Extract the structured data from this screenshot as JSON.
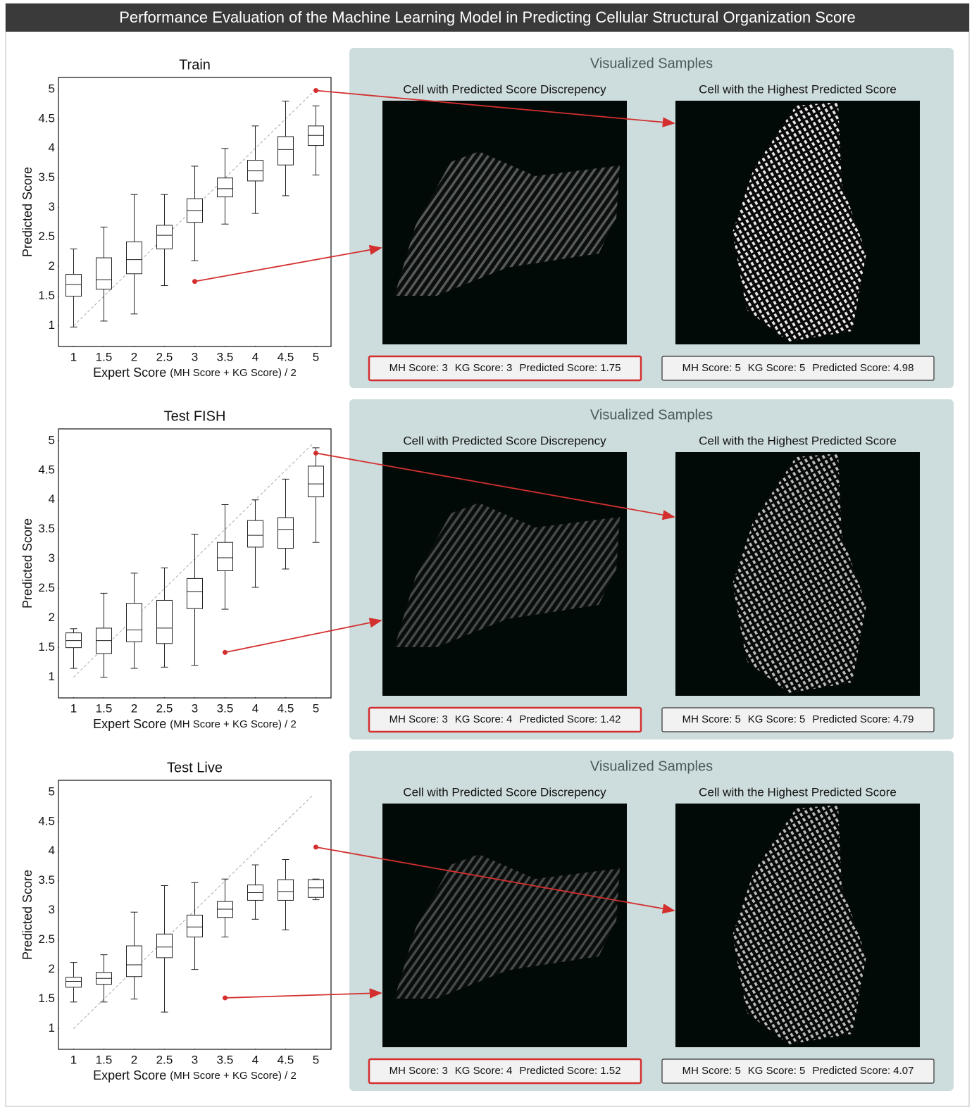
{
  "title": "Performance Evaluation of the Machine Learning Model in Predicting Cellular Structural Organization Score",
  "panel_title": "Visualized Samples",
  "sample_titles": [
    "Cell with Predicted Score Discrepency",
    "Cell with the Highest Predicted Score"
  ],
  "score_labels": [
    "MH Score:",
    "KG Score:",
    "Predicted Score:"
  ],
  "chart_data": [
    {
      "type": "box",
      "title": "Train",
      "xlabel": "Expert Score",
      "xlabel_note": "(MH Score + KG Score) / 2",
      "ylabel": "Predicted Score",
      "categories": [
        1,
        1.5,
        2,
        2.5,
        3,
        3.5,
        4,
        4.5,
        5
      ],
      "boxes": [
        [
          0.98,
          1.5,
          1.7,
          1.87,
          2.3
        ],
        [
          1.08,
          1.62,
          1.78,
          2.15,
          2.67
        ],
        [
          1.2,
          1.88,
          2.12,
          2.42,
          3.22
        ],
        [
          1.68,
          2.3,
          2.53,
          2.7,
          3.22
        ],
        [
          2.1,
          2.75,
          2.95,
          3.15,
          3.7
        ],
        [
          2.72,
          3.18,
          3.32,
          3.5,
          4.0
        ],
        [
          2.9,
          3.45,
          3.62,
          3.8,
          4.38
        ],
        [
          3.2,
          3.72,
          3.98,
          4.2,
          4.8
        ],
        [
          3.55,
          4.05,
          4.22,
          4.38,
          4.72
        ]
      ],
      "xlim": [
        0.75,
        5.25
      ],
      "ylim": [
        0.65,
        5.2
      ],
      "xticks": [
        1,
        1.5,
        2,
        2.5,
        3,
        3.5,
        4,
        4.5,
        5
      ],
      "yticks": [
        1,
        1.5,
        2,
        2.5,
        3,
        3.5,
        4,
        4.5,
        5
      ],
      "diagonal": true,
      "samples": [
        {
          "mh": 3,
          "kg": 3,
          "predicted": 1.75
        },
        {
          "mh": 5,
          "kg": 5,
          "predicted": 4.98
        }
      ]
    },
    {
      "type": "box",
      "title": "Test FISH",
      "xlabel": "Expert Score",
      "xlabel_note": "(MH Score + KG Score) / 2",
      "ylabel": "Predicted Score",
      "categories": [
        1,
        1.5,
        2,
        2.5,
        3,
        3.5,
        4,
        4.5,
        5
      ],
      "boxes": [
        [
          1.15,
          1.5,
          1.62,
          1.75,
          1.82
        ],
        [
          1.0,
          1.4,
          1.62,
          1.83,
          2.42
        ],
        [
          1.15,
          1.6,
          1.8,
          2.25,
          2.76
        ],
        [
          1.17,
          1.57,
          1.83,
          2.3,
          2.85
        ],
        [
          1.2,
          2.16,
          2.45,
          2.67,
          3.42
        ],
        [
          2.15,
          2.8,
          3.02,
          3.28,
          3.92
        ],
        [
          2.52,
          3.2,
          3.4,
          3.65,
          4.0
        ],
        [
          2.83,
          3.18,
          3.5,
          3.7,
          4.35
        ],
        [
          3.28,
          4.05,
          4.27,
          4.57,
          4.88
        ]
      ],
      "xlim": [
        0.75,
        5.25
      ],
      "ylim": [
        0.65,
        5.2
      ],
      "xticks": [
        1,
        1.5,
        2,
        2.5,
        3,
        3.5,
        4,
        4.5,
        5
      ],
      "yticks": [
        1,
        1.5,
        2,
        2.5,
        3,
        3.5,
        4,
        4.5,
        5
      ],
      "diagonal": true,
      "samples": [
        {
          "mh": 3,
          "kg": 4,
          "predicted": 1.42
        },
        {
          "mh": 5,
          "kg": 5,
          "predicted": 4.79
        }
      ]
    },
    {
      "type": "box",
      "title": "Test Live",
      "xlabel": "Expert Score",
      "xlabel_note": "(MH Score + KG Score) / 2",
      "ylabel": "Predicted Score",
      "categories": [
        1,
        1.5,
        2,
        2.5,
        3,
        3.5,
        4,
        4.5,
        5
      ],
      "boxes": [
        [
          1.45,
          1.7,
          1.8,
          1.87,
          2.12
        ],
        [
          1.45,
          1.75,
          1.85,
          1.95,
          2.25
        ],
        [
          1.5,
          1.88,
          2.08,
          2.4,
          2.97
        ],
        [
          1.28,
          2.2,
          2.38,
          2.6,
          3.42
        ],
        [
          2.0,
          2.55,
          2.72,
          2.92,
          3.47
        ],
        [
          2.55,
          2.88,
          3.02,
          3.15,
          3.53
        ],
        [
          2.85,
          3.17,
          3.3,
          3.43,
          3.77
        ],
        [
          2.67,
          3.17,
          3.32,
          3.52,
          3.86
        ],
        [
          3.18,
          3.22,
          3.38,
          3.52,
          3.53
        ]
      ],
      "xlim": [
        0.75,
        5.25
      ],
      "ylim": [
        0.65,
        5.2
      ],
      "xticks": [
        1,
        1.5,
        2,
        2.5,
        3,
        3.5,
        4,
        4.5,
        5
      ],
      "yticks": [
        1,
        1.5,
        2,
        2.5,
        3,
        3.5,
        4,
        4.5,
        5
      ],
      "diagonal": true,
      "samples": [
        {
          "mh": 3,
          "kg": 4,
          "predicted": 1.52
        },
        {
          "mh": 5,
          "kg": 5,
          "predicted": 4.07
        }
      ]
    }
  ]
}
